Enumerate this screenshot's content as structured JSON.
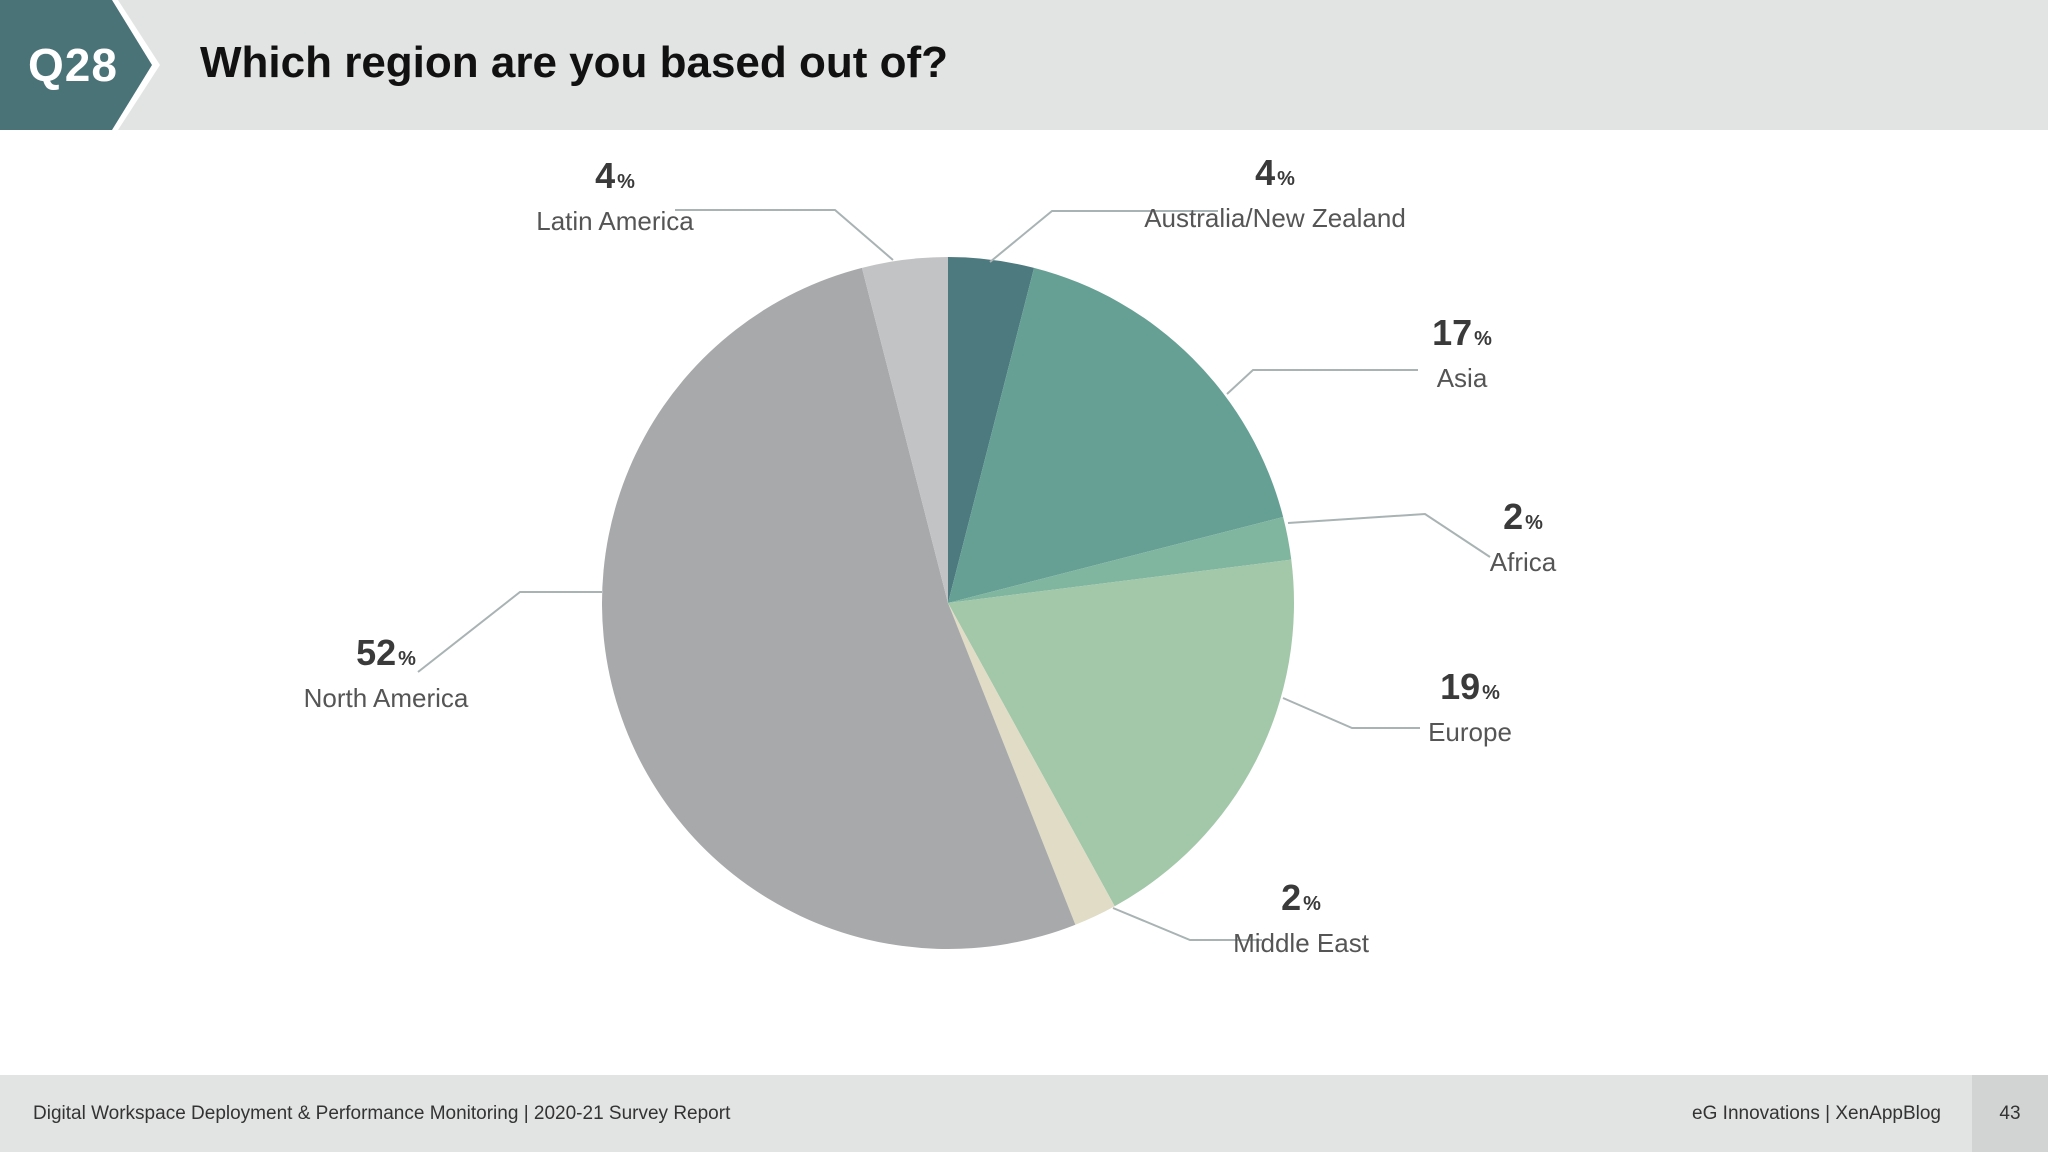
{
  "header": {
    "badge": "Q28",
    "question": "Which region are you based out of?"
  },
  "chart_data": {
    "type": "pie",
    "title": "Which region are you based out of?",
    "unit_symbol": "%",
    "slices": [
      {
        "label": "Australia/New Zealand",
        "value": 4,
        "color": "#4d7a7f"
      },
      {
        "label": "Asia",
        "value": 17,
        "color": "#66a095"
      },
      {
        "label": "Africa",
        "value": 2,
        "color": "#80b69f"
      },
      {
        "label": "Europe",
        "value": 19,
        "color": "#a2c8a9"
      },
      {
        "label": "Middle East",
        "value": 2,
        "color": "#e0dcc6"
      },
      {
        "label": "North America",
        "value": 52,
        "color": "#a8a9ab"
      },
      {
        "label": "Latin America",
        "value": 4,
        "color": "#c2c3c5"
      }
    ]
  },
  "footer": {
    "report": "Digital Workspace Deployment & Performance Monitoring | 2020-21 Survey Report",
    "brand": "eG Innovations  |  XenAppBlog",
    "page": "43"
  },
  "colors": {
    "badge": "#4a7378",
    "header_bg": "#e2e3e3",
    "leader": "#a9b3b3"
  }
}
